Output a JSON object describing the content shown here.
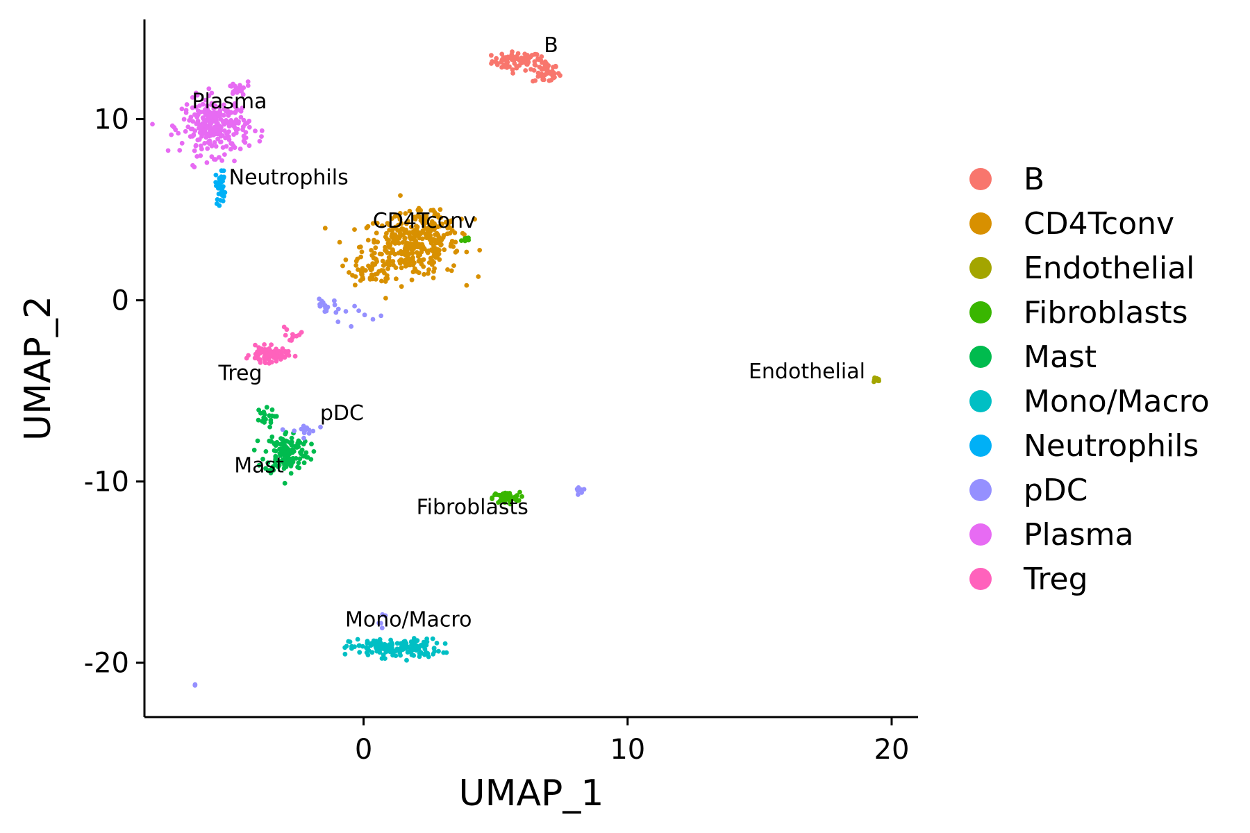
{
  "chart_data": {
    "type": "scatter",
    "xlabel": "UMAP_1",
    "ylabel": "UMAP_2",
    "xlim": [
      -8.3,
      21
    ],
    "ylim": [
      -23,
      15.5
    ],
    "xticks": [
      0,
      10,
      20
    ],
    "yticks": [
      10,
      0,
      -10,
      -20
    ],
    "grid": false,
    "legend_position": "right",
    "series": [
      {
        "name": "B",
        "color": "#F8766D",
        "clusters": [
          {
            "cx": 5.8,
            "cy": 13.2,
            "sx": 0.55,
            "sy": 0.3,
            "n": 70
          },
          {
            "cx": 6.9,
            "cy": 12.6,
            "sx": 0.3,
            "sy": 0.4,
            "n": 50
          }
        ]
      },
      {
        "name": "CD4Tconv",
        "color": "#D89000",
        "clusters": [
          {
            "cx": 1.8,
            "cy": 3.0,
            "sx": 1.1,
            "sy": 1.0,
            "n": 330
          },
          {
            "cx": 0.3,
            "cy": 1.6,
            "sx": 0.45,
            "sy": 0.35,
            "n": 40
          },
          {
            "cx": 2.6,
            "cy": 4.2,
            "sx": 0.6,
            "sy": 0.4,
            "n": 50
          }
        ]
      },
      {
        "name": "Endothelial",
        "color": "#A3A500",
        "clusters": [
          {
            "cx": 19.4,
            "cy": -4.4,
            "sx": 0.1,
            "sy": 0.1,
            "n": 10
          }
        ]
      },
      {
        "name": "Fibroblasts",
        "color": "#39B600",
        "clusters": [
          {
            "cx": 5.4,
            "cy": -10.9,
            "sx": 0.3,
            "sy": 0.18,
            "n": 55
          },
          {
            "cx": 3.9,
            "cy": 3.3,
            "sx": 0.25,
            "sy": 0.15,
            "n": 8
          }
        ]
      },
      {
        "name": "Mast",
        "color": "#00BB4E",
        "clusters": [
          {
            "cx": -2.9,
            "cy": -8.4,
            "sx": 0.5,
            "sy": 0.7,
            "n": 140
          },
          {
            "cx": -3.8,
            "cy": -6.5,
            "sx": 0.25,
            "sy": 0.3,
            "n": 20
          }
        ]
      },
      {
        "name": "Mono/Macro",
        "color": "#00BFC4",
        "clusters": [
          {
            "cx": 1.2,
            "cy": -19.2,
            "sx": 1.0,
            "sy": 0.3,
            "n": 160
          }
        ]
      },
      {
        "name": "Neutrophils",
        "color": "#00B0F6",
        "clusters": [
          {
            "cx": -5.4,
            "cy": 6.3,
            "sx": 0.12,
            "sy": 0.6,
            "n": 30
          }
        ]
      },
      {
        "name": "pDC",
        "color": "#9590FF",
        "clusters": [
          {
            "cx": -1.5,
            "cy": -0.3,
            "sx": 0.3,
            "sy": 0.2,
            "n": 15
          },
          {
            "cx": -2.3,
            "cy": -7.2,
            "sx": 0.3,
            "sy": 0.2,
            "n": 15
          },
          {
            "cx": 8.2,
            "cy": -10.4,
            "sx": 0.2,
            "sy": 0.12,
            "n": 10
          },
          {
            "cx": 0.8,
            "cy": -17.8,
            "sx": 0.15,
            "sy": 0.3,
            "n": 5
          },
          {
            "cx": -6.4,
            "cy": -21.2,
            "sx": 0.05,
            "sy": 0.05,
            "n": 2
          },
          {
            "cx": -0.5,
            "cy": -1.0,
            "sx": 0.8,
            "sy": 0.5,
            "n": 10
          }
        ]
      },
      {
        "name": "Plasma",
        "color": "#E76BF3",
        "clusters": [
          {
            "cx": -5.6,
            "cy": 9.6,
            "sx": 0.75,
            "sy": 0.9,
            "n": 280
          },
          {
            "cx": -4.8,
            "cy": 11.6,
            "sx": 0.3,
            "sy": 0.3,
            "n": 15
          }
        ]
      },
      {
        "name": "Treg",
        "color": "#FF62BC",
        "clusters": [
          {
            "cx": -3.6,
            "cy": -3.0,
            "sx": 0.4,
            "sy": 0.25,
            "n": 80
          },
          {
            "cx": -2.7,
            "cy": -1.9,
            "sx": 0.3,
            "sy": 0.3,
            "n": 10
          }
        ]
      }
    ],
    "annotations": [
      {
        "text": "B",
        "x": 7.1,
        "y": 13.7,
        "anchor": "middle"
      },
      {
        "text": "Plasma",
        "x": -6.5,
        "y": 10.6,
        "anchor": "start"
      },
      {
        "text": "Neutrophils",
        "x": -5.1,
        "y": 6.4,
        "anchor": "start"
      },
      {
        "text": "CD4Tconv",
        "x": 0.35,
        "y": 4.0,
        "anchor": "start"
      },
      {
        "text": "Endothelial",
        "x": 19.0,
        "y": -4.3,
        "anchor": "end"
      },
      {
        "text": "Treg",
        "x": -5.5,
        "y": -4.4,
        "anchor": "start"
      },
      {
        "text": "pDC",
        "x": -1.65,
        "y": -6.6,
        "anchor": "start"
      },
      {
        "text": "Mast",
        "x": -4.9,
        "y": -9.5,
        "anchor": "start"
      },
      {
        "text": "Fibroblasts",
        "x": 2.0,
        "y": -11.8,
        "anchor": "start"
      },
      {
        "text": "Mono/Macro",
        "x": -0.7,
        "y": -18.0,
        "anchor": "start"
      }
    ]
  }
}
